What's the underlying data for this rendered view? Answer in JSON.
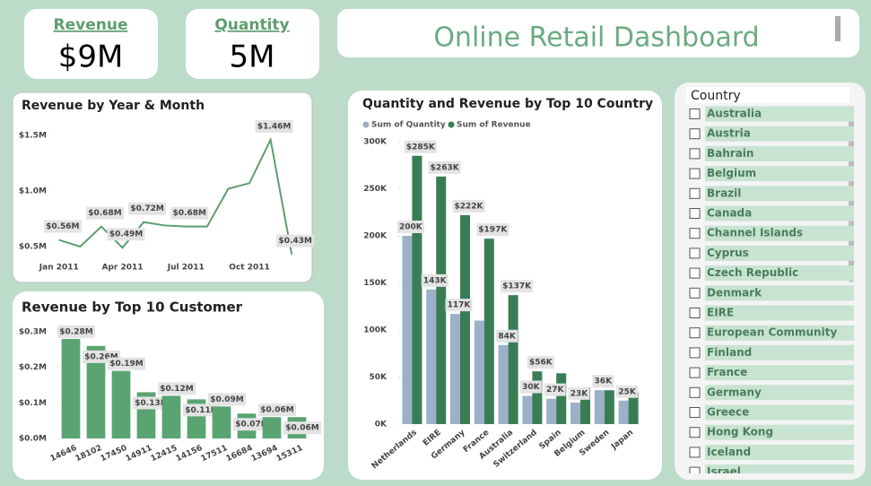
{
  "cards": [
    {
      "label": "Revenue",
      "value": "$9M"
    },
    {
      "label": "Quantity",
      "value": "5M"
    }
  ],
  "dashboard_title": "Online Retail Dashboard",
  "chart_data": [
    {
      "type": "line",
      "title": "Revenue by Year & Month",
      "categories": [
        "Jan 2011",
        null,
        null,
        "Apr 2011",
        null,
        null,
        "Jul 2011",
        null,
        null,
        "Oct 2011",
        null,
        null
      ],
      "values": [
        0.56,
        0.5,
        0.68,
        0.49,
        0.72,
        0.69,
        0.68,
        0.68,
        1.02,
        1.07,
        1.46,
        0.43
      ],
      "value_labels": [
        "$0.56M",
        null,
        "$0.68M",
        "$0.49M",
        "$0.72M",
        null,
        "$0.68M",
        null,
        null,
        null,
        "$1.46M",
        "$0.43M"
      ],
      "color": "#5d9e6f",
      "ylim": [
        0.3,
        1.6
      ],
      "yticks": [
        {
          "value": 0.5,
          "label": "$0.5M"
        },
        {
          "value": 1.0,
          "label": "$1.0M"
        },
        {
          "value": 1.5,
          "label": "$1.5M"
        }
      ]
    },
    {
      "type": "bar",
      "title": "Revenue by Top 10 Customer",
      "categories": [
        "14646",
        "18102",
        "17450",
        "14911",
        "12415",
        "14156",
        "17511",
        "16684",
        "13694",
        "15311"
      ],
      "values": [
        0.28,
        0.26,
        0.19,
        0.13,
        0.12,
        0.11,
        0.09,
        0.07,
        0.06,
        0.06
      ],
      "value_labels": [
        "$0.28M",
        "$0.26M",
        "$0.19M",
        "$0.13M",
        "$0.12M",
        "$0.11M",
        "$0.09M",
        "$0.07M",
        "$0.06M",
        "$0.06M"
      ],
      "color": "#5aa472",
      "ylim": [
        0,
        0.3
      ],
      "yticks": [
        {
          "value": 0,
          "label": "$0.0M"
        },
        {
          "value": 0.1,
          "label": "$0.1M"
        },
        {
          "value": 0.2,
          "label": "$0.2M"
        },
        {
          "value": 0.3,
          "label": "$0.3M"
        }
      ]
    },
    {
      "type": "grouped_bar",
      "title": "Quantity and Revenue by Top 10 Country",
      "categories": [
        "Netherlands",
        "EIRE",
        "Germany",
        "France",
        "Australia",
        "Switzerland",
        "Spain",
        "Belgium",
        "Sweden",
        "Japan"
      ],
      "series": [
        {
          "name": "Sum of Quantity",
          "color": "#9cb0c8",
          "values": [
            200000,
            143000,
            117000,
            110000,
            84000,
            30000,
            27000,
            23000,
            36000,
            25000
          ],
          "value_labels": [
            "200K",
            "143K",
            "117K",
            null,
            "84K",
            "30K",
            "27K",
            "23K",
            "36K",
            "25K"
          ]
        },
        {
          "name": "Sum of Revenue",
          "color": "#3a7d55",
          "values": [
            285000,
            263000,
            222000,
            197000,
            137000,
            56000,
            54000,
            39000,
            36000,
            34000
          ],
          "value_labels": [
            "$285K",
            "$263K",
            "$222K",
            "$197K",
            "$137K",
            "$56K",
            null,
            null,
            null,
            null
          ]
        }
      ],
      "ylim": [
        0,
        300000
      ],
      "yticks": [
        {
          "value": 0,
          "label": "0K"
        },
        {
          "value": 50000,
          "label": "50K"
        },
        {
          "value": 100000,
          "label": "100K"
        },
        {
          "value": 150000,
          "label": "150K"
        },
        {
          "value": 200000,
          "label": "200K"
        },
        {
          "value": 250000,
          "label": "250K"
        },
        {
          "value": 300000,
          "label": "300K"
        }
      ]
    }
  ],
  "slicer": {
    "title": "Country",
    "items": [
      "Australia",
      "Austria",
      "Bahrain",
      "Belgium",
      "Brazil",
      "Canada",
      "Channel Islands",
      "Cyprus",
      "Czech Republic",
      "Denmark",
      "EIRE",
      "European Community",
      "Finland",
      "France",
      "Germany",
      "Greece",
      "Hong Kong",
      "Iceland",
      "Israel"
    ]
  }
}
